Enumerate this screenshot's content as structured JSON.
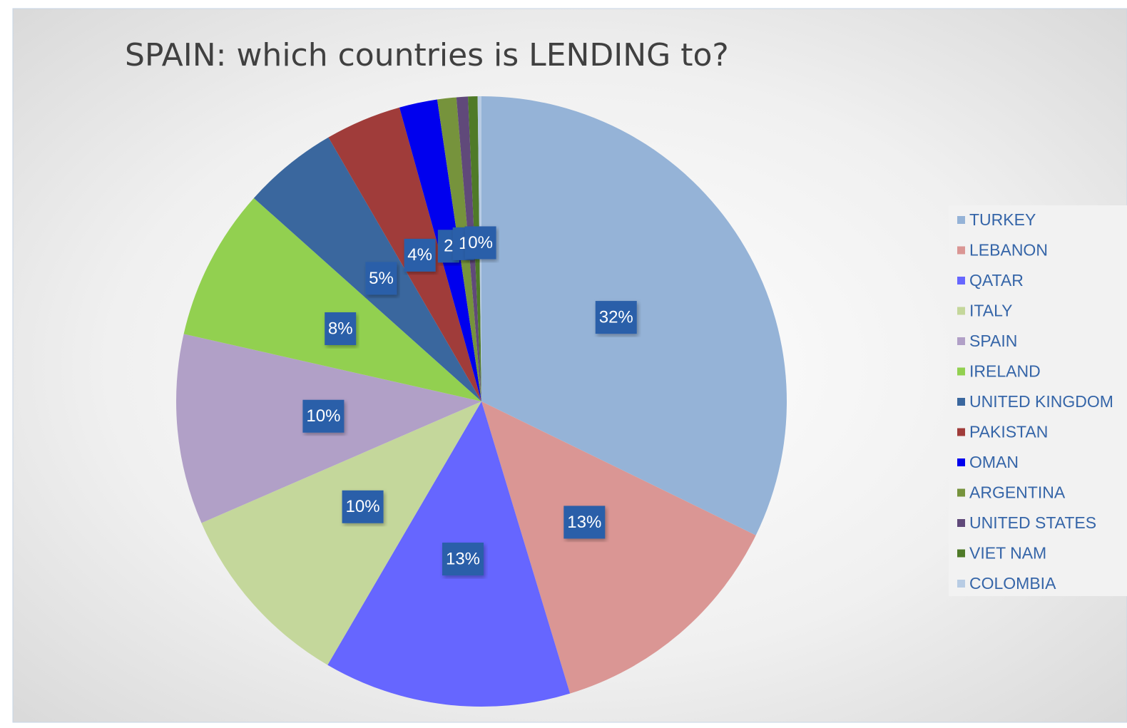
{
  "chart_data": {
    "type": "pie",
    "title": "SPAIN: which countries is LENDING to?",
    "categories": [
      "TURKEY",
      "LEBANON",
      "QATAR",
      "ITALY",
      "SPAIN",
      "IRELAND",
      "UNITED KINGDOM",
      "PAKISTAN",
      "OMAN",
      "ARGENTINA",
      "UNITED STATES",
      "VIET NAM",
      "COLOMBIA"
    ],
    "values": [
      32,
      13,
      13,
      10,
      10,
      8,
      5,
      4,
      2,
      1,
      0.6,
      0.5,
      0.2
    ],
    "value_labels": [
      "32%",
      "13%",
      "13%",
      "10%",
      "10%",
      "8%",
      "5%",
      "4%",
      "2",
      "1",
      null,
      null,
      "0%"
    ],
    "colors": [
      "#95b3d7",
      "#da9694",
      "#6666ff",
      "#c4d79b",
      "#b1a0c7",
      "#92d050",
      "#3a679e",
      "#a03c3a",
      "#0000ee",
      "#76933c",
      "#60497a",
      "#4f7a28",
      "#b8cce4"
    ],
    "legend": "right"
  }
}
